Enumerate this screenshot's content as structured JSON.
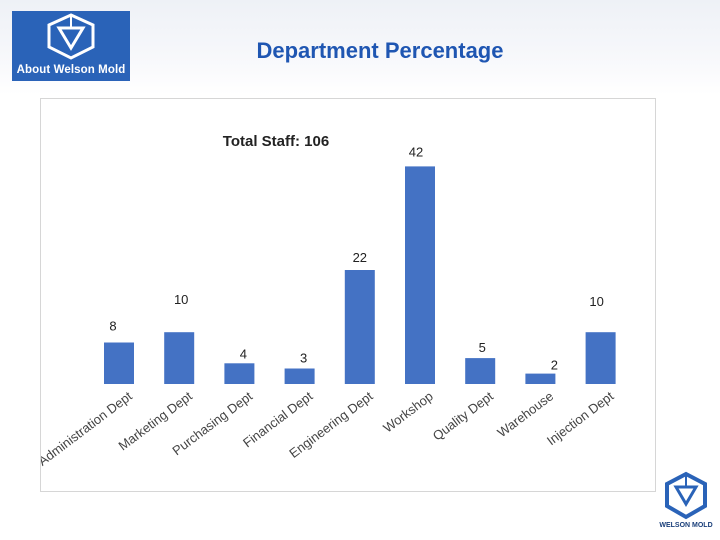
{
  "header": {
    "logo_text": "About Welson Mold",
    "page_title": "Department Percentage"
  },
  "footer": {
    "logo_text": "WELSON MOLD"
  },
  "colors": {
    "bar": "#4472c4",
    "title": "#1f56b2",
    "logo_bg": "#2a63b8"
  },
  "chart_data": {
    "type": "bar",
    "title": "Total Staff: 106",
    "categories": [
      "Administration Dept",
      "Marketing Dept",
      "Purchasing Dept",
      "Financial Dept",
      "Engineering Dept",
      "Workshop",
      "Quality Dept",
      "Warehouse",
      "Injection Dept"
    ],
    "values": [
      8,
      10,
      4,
      3,
      22,
      42,
      5,
      2,
      10
    ],
    "xlabel": "",
    "ylabel": "",
    "ylim": [
      0,
      44
    ],
    "grid": false
  }
}
